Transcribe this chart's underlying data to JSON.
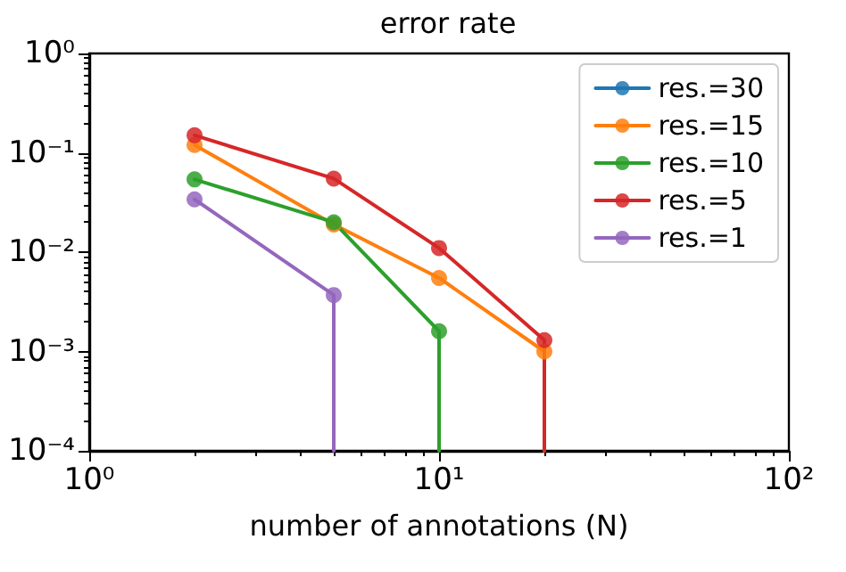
{
  "chart_data": {
    "type": "line",
    "title": "error rate",
    "xlabel": "number of annotations (N)",
    "xlim": [
      1,
      100
    ],
    "xticks": [
      {
        "value": 1,
        "label": "10⁰"
      },
      {
        "value": 10,
        "label": "10¹"
      },
      {
        "value": 100,
        "label": "10²"
      }
    ],
    "ylim": [
      0.0001,
      1
    ],
    "yticks": [
      {
        "value": 0.0001,
        "label": "10⁻⁴"
      },
      {
        "value": 0.001,
        "label": "10⁻³"
      },
      {
        "value": 0.01,
        "label": "10⁻²"
      },
      {
        "value": 0.1,
        "label": "10⁻¹"
      },
      {
        "value": 1,
        "label": "10⁰"
      }
    ],
    "log": "xy",
    "grid": false,
    "legend": "top right",
    "marker": "circle",
    "line_style": "solid",
    "series": [
      {
        "name": "res.=30",
        "color": "#1f77b4"
      },
      {
        "name": "res.=15",
        "color": "#ff7f0e",
        "x": [
          2,
          5,
          10,
          20,
          20
        ],
        "values": [
          0.12,
          0.019,
          0.0055,
          0.001,
          0.0001
        ]
      },
      {
        "name": "res.=10",
        "color": "#2ca02c",
        "x": [
          2,
          5,
          10,
          10
        ],
        "values": [
          0.054,
          0.02,
          0.0016,
          0.0001
        ]
      },
      {
        "name": "res.=5",
        "color": "#d62728",
        "x": [
          2,
          5,
          10,
          20,
          20
        ],
        "values": [
          0.15,
          0.055,
          0.011,
          0.0013,
          0.0001
        ]
      },
      {
        "name": "res.=1",
        "color": "#9467bd",
        "x": [
          2,
          5,
          5
        ],
        "values": [
          0.034,
          0.0037,
          0.0001
        ]
      }
    ]
  }
}
